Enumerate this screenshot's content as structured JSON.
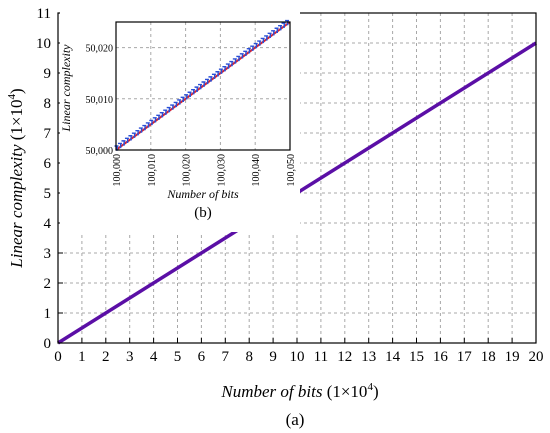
{
  "chart_data": [
    {
      "type": "line",
      "xlabel": "Number of bits",
      "xlabel_unit": "(1×10",
      "xlabel_exp": "4",
      "xlabel_close": ")",
      "ylabel": "Linear complexity",
      "ylabel_unit": "(1×10",
      "ylabel_exp": "4",
      "ylabel_close": ")",
      "caption": "(a)",
      "xlim": [
        0,
        20
      ],
      "ylim": [
        0,
        11
      ],
      "xticks": [
        "0",
        "1",
        "2",
        "3",
        "4",
        "5",
        "6",
        "7",
        "8",
        "9",
        "10",
        "11",
        "12",
        "13",
        "14",
        "15",
        "16",
        "17",
        "18",
        "19",
        "20"
      ],
      "yticks": [
        "0",
        "1",
        "2",
        "3",
        "4",
        "5",
        "6",
        "7",
        "8",
        "9",
        "10",
        "11"
      ],
      "grid": true,
      "series": [
        {
          "color": "#5b0fa6",
          "x": [
            0,
            20
          ],
          "y": [
            0,
            10
          ]
        }
      ]
    },
    {
      "type": "line",
      "xlabel": "Number of bits",
      "ylabel": "Linear complexity",
      "caption": "(b)",
      "xlim": [
        100000,
        100050
      ],
      "ylim": [
        50000,
        50025
      ],
      "xticks": [
        "100,000",
        "100,010",
        "100,020",
        "100,030",
        "100,040",
        "100,050"
      ],
      "xtick_values": [
        100000,
        100010,
        100020,
        100030,
        100040,
        100050
      ],
      "yticks": [
        "50,000",
        "50,010",
        "50,020"
      ],
      "ytick_values": [
        50000,
        50010,
        50020
      ],
      "grid": true,
      "series": [
        {
          "color": "#e0202a",
          "x": [
            100000,
            100050
          ],
          "y": [
            50000,
            50025
          ]
        },
        {
          "color": "#2a4fd6",
          "marker": "staircase",
          "x": [
            100000,
            100050
          ],
          "y": [
            50000,
            50025
          ]
        }
      ]
    }
  ]
}
